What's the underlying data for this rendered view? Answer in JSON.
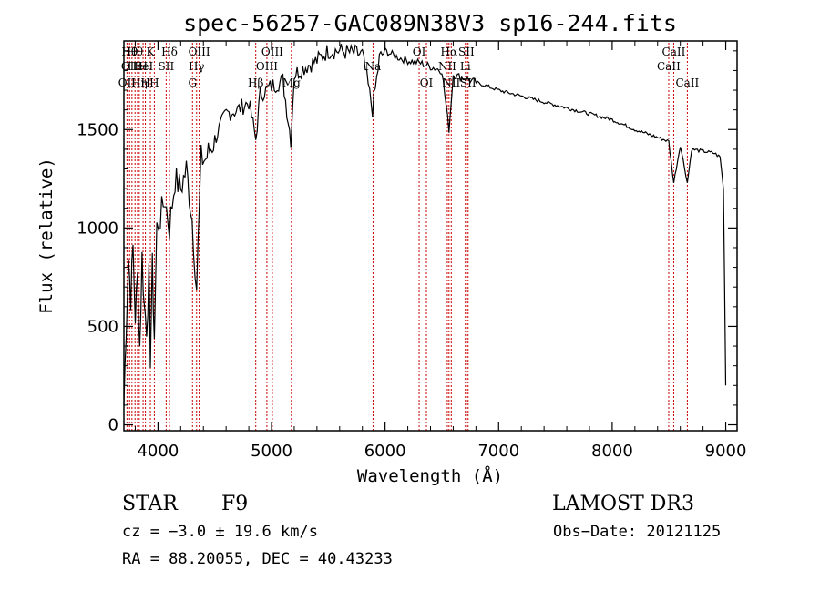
{
  "chart_data": {
    "type": "line",
    "title": "spec-56257-GAC089N38V3_sp16-244.fits",
    "xlabel": "Wavelength (Å)",
    "ylabel": "Flux (relative)",
    "xlim": [
      3700,
      9100
    ],
    "ylim": [
      -30,
      1950
    ],
    "xticks": [
      4000,
      5000,
      6000,
      7000,
      8000,
      9000
    ],
    "xtick_labels": [
      "4000",
      "5000",
      "6000",
      "7000",
      "8000",
      "9000"
    ],
    "yticks": [
      0,
      500,
      1000,
      1500
    ],
    "ytick_labels": [
      "0",
      "500",
      "1000",
      "1500"
    ],
    "series": [
      {
        "name": "flux",
        "x": [
          3700,
          3720,
          3740,
          3760,
          3780,
          3800,
          3820,
          3840,
          3860,
          3880,
          3900,
          3920,
          3933,
          3950,
          3968,
          3990,
          4020,
          4060,
          4101,
          4150,
          4200,
          4250,
          4300,
          4340,
          4380,
          4420,
          4500,
          4600,
          4700,
          4800,
          4861,
          4900,
          5000,
          5100,
          5170,
          5200,
          5300,
          5400,
          5500,
          5600,
          5700,
          5800,
          5890,
          5950,
          6000,
          6100,
          6200,
          6300,
          6400,
          6500,
          6563,
          6600,
          6700,
          6800,
          6900,
          7000,
          7200,
          7400,
          7600,
          7800,
          8000,
          8200,
          8400,
          8498,
          8542,
          8600,
          8662,
          8700,
          8800,
          8900,
          8950,
          8980,
          9000
        ],
        "values": [
          100,
          500,
          850,
          650,
          900,
          550,
          750,
          400,
          850,
          600,
          500,
          750,
          350,
          800,
          450,
          1000,
          1050,
          1150,
          1000,
          1250,
          1200,
          1300,
          1050,
          700,
          1350,
          1350,
          1450,
          1580,
          1600,
          1640,
          1450,
          1680,
          1720,
          1750,
          1450,
          1780,
          1820,
          1850,
          1900,
          1900,
          1890,
          1880,
          1600,
          1860,
          1900,
          1870,
          1850,
          1840,
          1820,
          1800,
          1500,
          1780,
          1760,
          1740,
          1720,
          1700,
          1670,
          1640,
          1610,
          1580,
          1550,
          1500,
          1460,
          1440,
          1230,
          1420,
          1230,
          1400,
          1390,
          1380,
          1360,
          1200,
          200
        ]
      }
    ],
    "line_markers": [
      {
        "wavelength": 3727,
        "label": "OII",
        "row": 2
      },
      {
        "wavelength": 3750,
        "label": "Hθ",
        "row": 0
      },
      {
        "wavelength": 3771,
        "label": "OIII",
        "row": 1
      },
      {
        "wavelength": 3798,
        "label": "Hθ",
        "row": 0
      },
      {
        "wavelength": 3820,
        "label": "HeI",
        "row": 1
      },
      {
        "wavelength": 3835,
        "label": "Hη",
        "row": 2
      },
      {
        "wavelength": 3869,
        "label": "HeI",
        "row": 1
      },
      {
        "wavelength": 3889,
        "label": "H",
        "row": 2
      },
      {
        "wavelength": 3933,
        "label": "K",
        "row": 0
      },
      {
        "wavelength": 3968,
        "label": "H",
        "row": 2
      },
      {
        "wavelength": 4072,
        "label": "SII",
        "row": 1
      },
      {
        "wavelength": 4101,
        "label": "Hδ",
        "row": 0
      },
      {
        "wavelength": 4304,
        "label": "G",
        "row": 2
      },
      {
        "wavelength": 4340,
        "label": "Hγ",
        "row": 1
      },
      {
        "wavelength": 4363,
        "label": "OIII",
        "row": 0
      },
      {
        "wavelength": 4861,
        "label": "Hβ",
        "row": 2
      },
      {
        "wavelength": 4959,
        "label": "OIII",
        "row": 1
      },
      {
        "wavelength": 5007,
        "label": "OIII",
        "row": 0
      },
      {
        "wavelength": 5175,
        "label": "Mg",
        "row": 2
      },
      {
        "wavelength": 5894,
        "label": "Na",
        "row": 1
      },
      {
        "wavelength": 6300,
        "label": "OI",
        "row": 0
      },
      {
        "wavelength": 6364,
        "label": "OI",
        "row": 2
      },
      {
        "wavelength": 6548,
        "label": "NII",
        "row": 1
      },
      {
        "wavelength": 6563,
        "label": "Hα",
        "row": 0
      },
      {
        "wavelength": 6583,
        "label": "NII",
        "row": 2
      },
      {
        "wavelength": 6707,
        "label": "Li",
        "row": 1
      },
      {
        "wavelength": 6716,
        "label": "SII",
        "row": 0
      },
      {
        "wavelength": 6731,
        "label": "SII",
        "row": 2
      },
      {
        "wavelength": 8498,
        "label": "CaII",
        "row": 1
      },
      {
        "wavelength": 8542,
        "label": "CaII",
        "row": 0
      },
      {
        "wavelength": 8662,
        "label": "CaII",
        "row": 2
      }
    ]
  },
  "footer": {
    "object_class": "STAR",
    "subclass": "F9",
    "survey": "LAMOST DR3",
    "cz": "cz = −3.0 ± 19.6 km/s",
    "obs_date": "Obs−Date: 20121125",
    "coords": "RA =  88.20055, DEC =  40.43233"
  },
  "colors": {
    "marker_line": "#cc0000",
    "spectrum": "#000000"
  }
}
